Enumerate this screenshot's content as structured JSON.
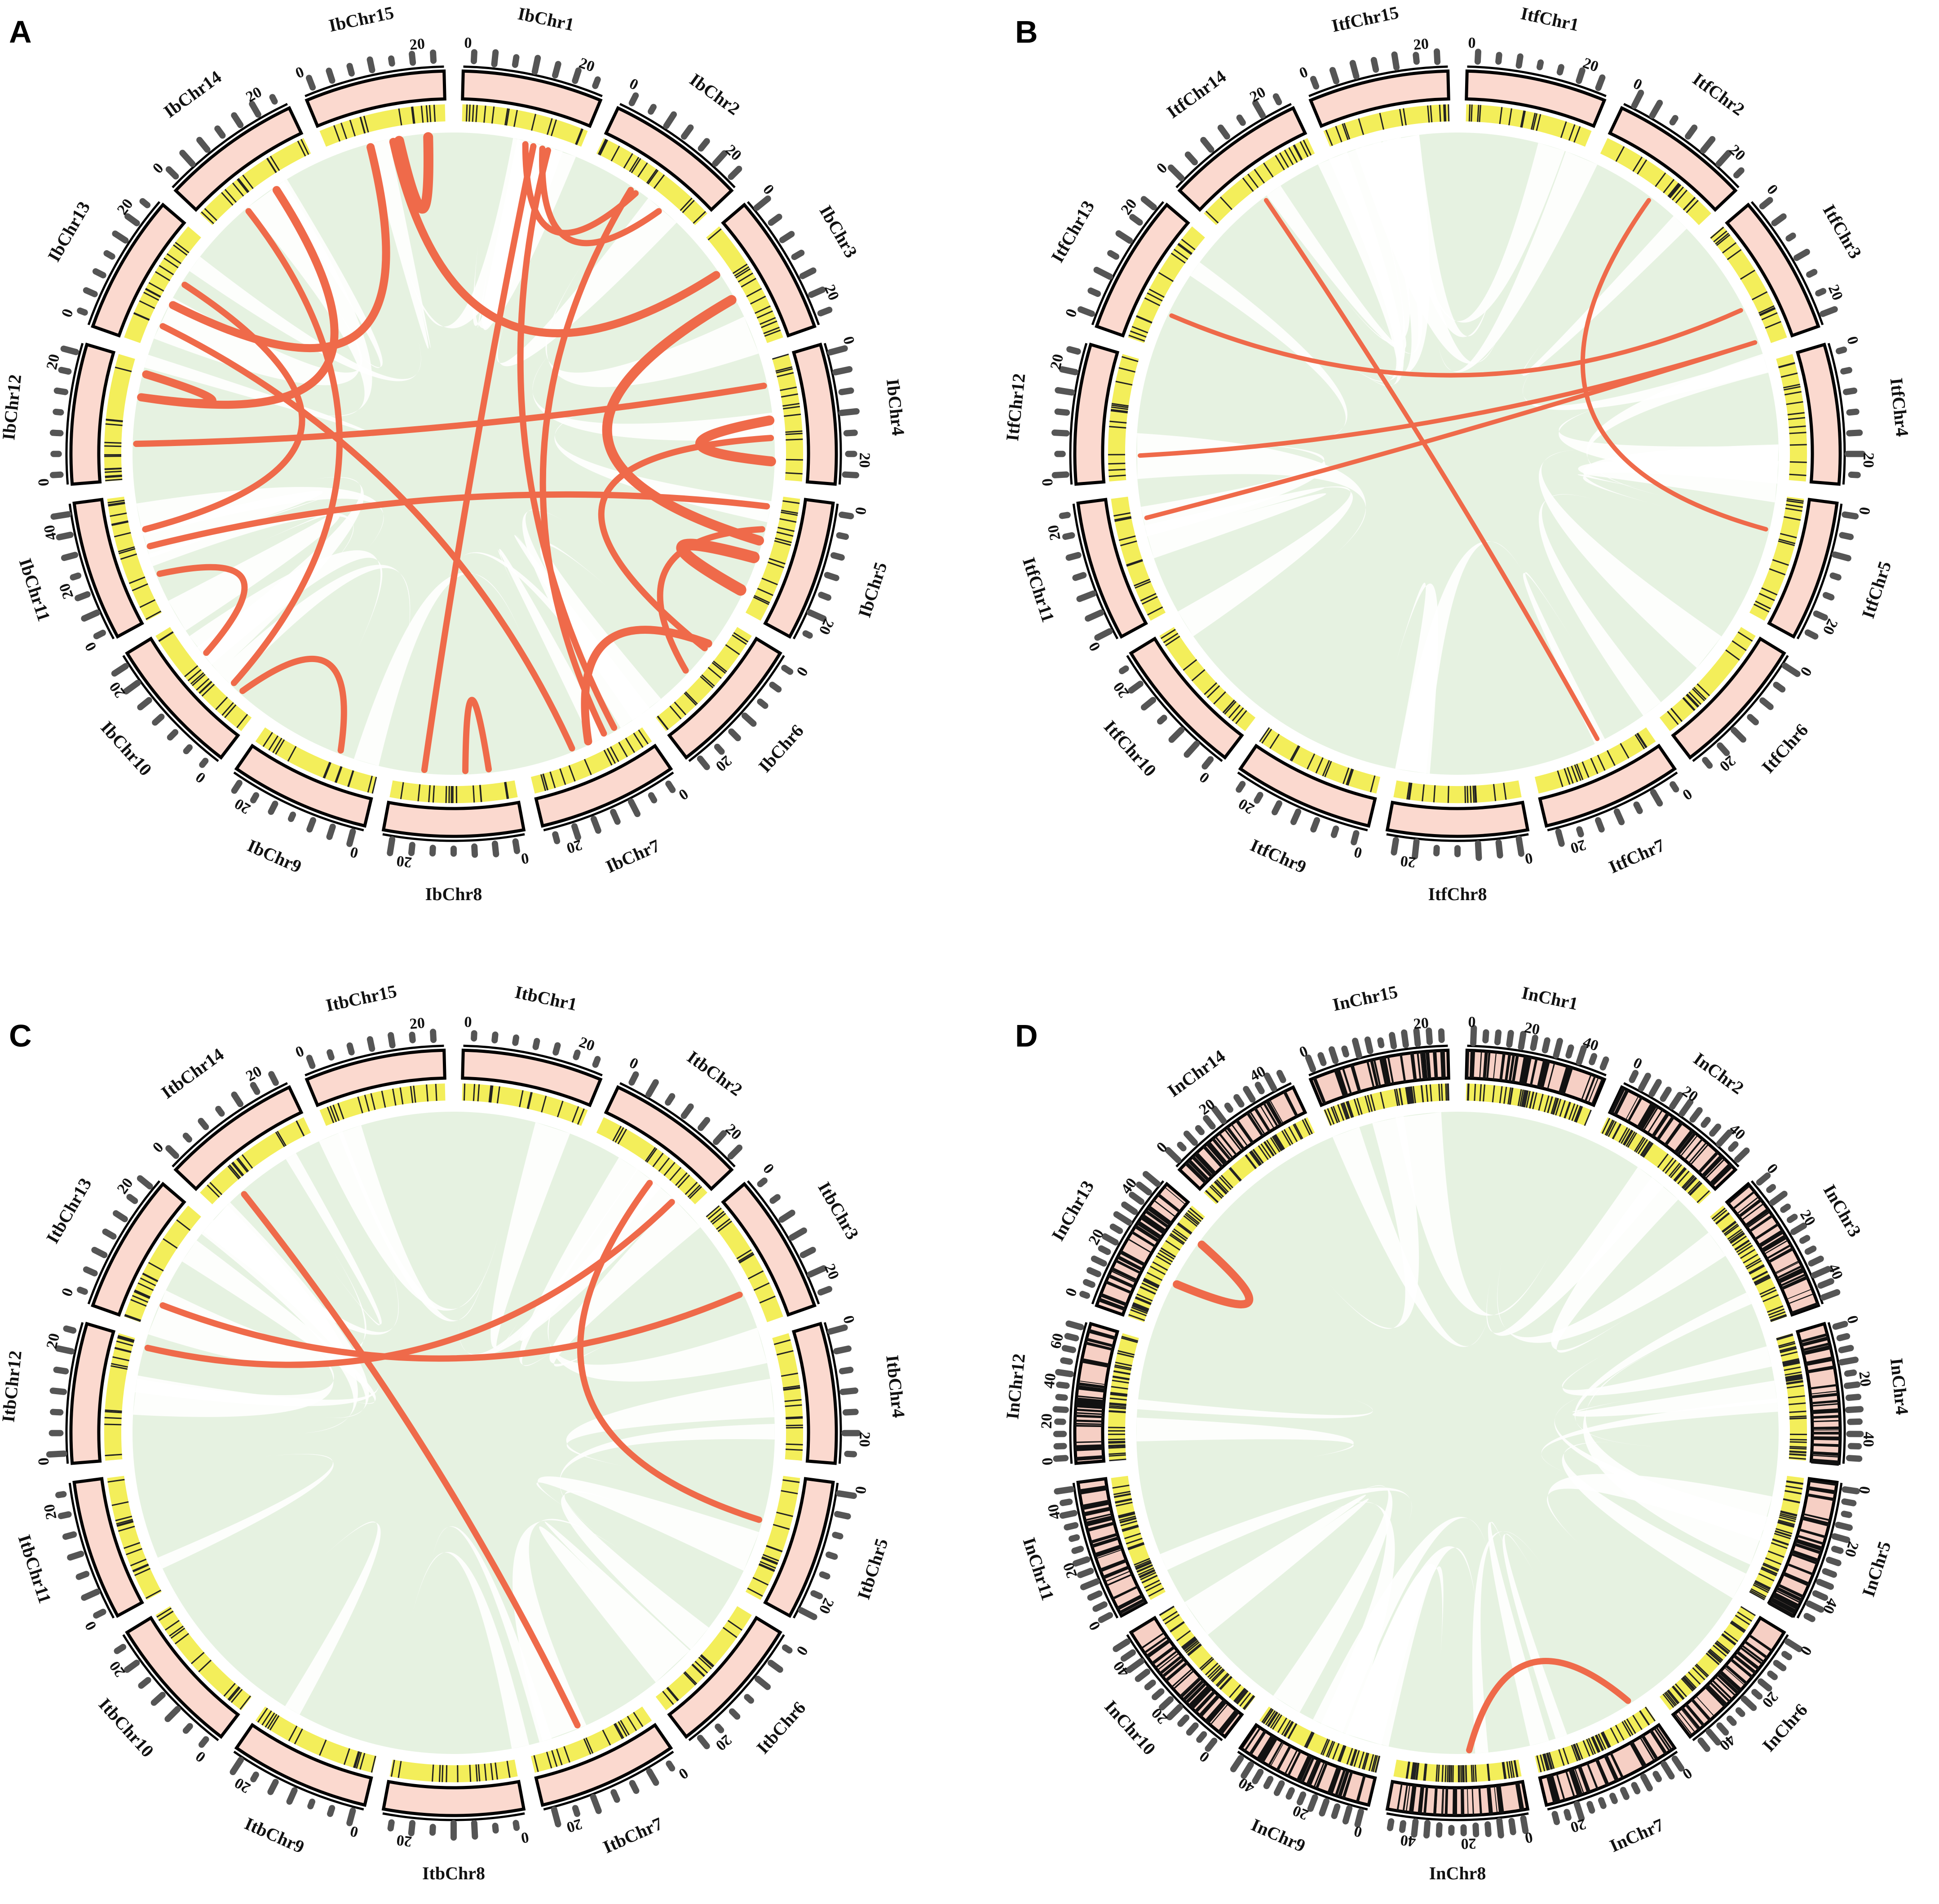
{
  "figure": {
    "panels": [
      {
        "letter": "A",
        "prefix": "IbChr",
        "chromosomes": [
          {
            "name": "IbChr1",
            "ticks": [
              "0",
              "20"
            ]
          },
          {
            "name": "IbChr2",
            "ticks": [
              "0",
              "20"
            ]
          },
          {
            "name": "IbChr3",
            "ticks": [
              "0",
              "20"
            ]
          },
          {
            "name": "IbChr4",
            "ticks": [
              "0",
              "20"
            ]
          },
          {
            "name": "IbChr5",
            "ticks": [
              "0",
              "20"
            ]
          },
          {
            "name": "IbChr6",
            "ticks": [
              "0",
              "20"
            ]
          },
          {
            "name": "IbChr7",
            "ticks": [
              "0",
              "20"
            ]
          },
          {
            "name": "IbChr8",
            "ticks": [
              "0",
              "20"
            ]
          },
          {
            "name": "IbChr9",
            "ticks": [
              "0",
              "20"
            ]
          },
          {
            "name": "IbChr10",
            "ticks": [
              "0",
              "20"
            ]
          },
          {
            "name": "IbChr11",
            "ticks": [
              "0",
              "20",
              "40"
            ]
          },
          {
            "name": "IbChr12",
            "ticks": [
              "0",
              "20"
            ]
          },
          {
            "name": "IbChr13",
            "ticks": [
              "0",
              "20"
            ]
          },
          {
            "name": "IbChr14",
            "ticks": [
              "0",
              "20"
            ]
          },
          {
            "name": "IbChr15",
            "ticks": [
              "0",
              "20"
            ]
          }
        ],
        "links": [
          {
            "from": [
              "IbChr15",
              0.35
            ],
            "to": [
              "IbChr13",
              0.4
            ],
            "weight": 3
          },
          {
            "from": [
              "IbChr15",
              0.55
            ],
            "to": [
              "IbChr3",
              0.3
            ],
            "weight": 3
          },
          {
            "from": [
              "IbChr15",
              0.85
            ],
            "to": [
              "IbChr15",
              0.6
            ],
            "weight": 4
          },
          {
            "from": [
              "IbChr14",
              0.3
            ],
            "to": [
              "IbChr10",
              0.3
            ],
            "weight": 2
          },
          {
            "from": [
              "IbChr14",
              0.6
            ],
            "to": [
              "IbChr12",
              0.7
            ],
            "weight": 3
          },
          {
            "from": [
              "IbChr13",
              0.2
            ],
            "to": [
              "IbChr7",
              0.6
            ],
            "weight": 2
          },
          {
            "from": [
              "IbChr1",
              0.55
            ],
            "to": [
              "IbChr2",
              0.45
            ],
            "weight": 2
          },
          {
            "from": [
              "IbChr1",
              0.7
            ],
            "to": [
              "IbChr2",
              0.7
            ],
            "weight": 2
          },
          {
            "from": [
              "IbChr1",
              0.62
            ],
            "to": [
              "IbChr8",
              0.75
            ],
            "weight": 2
          },
          {
            "from": [
              "IbChr2",
              0.4
            ],
            "to": [
              "IbChr7",
              0.3
            ],
            "weight": 2
          },
          {
            "from": [
              "IbChr3",
              0.55
            ],
            "to": [
              "IbChr5",
              0.4
            ],
            "weight": 4
          },
          {
            "from": [
              "IbChr4",
              0.2
            ],
            "to": [
              "IbChr12",
              0.3
            ],
            "weight": 2
          },
          {
            "from": [
              "IbChr4",
              0.5
            ],
            "to": [
              "IbChr4",
              0.85
            ],
            "weight": 4
          },
          {
            "from": [
              "IbChr4",
              0.65
            ],
            "to": [
              "IbChr6",
              0.3
            ],
            "weight": 2
          },
          {
            "from": [
              "IbChr5",
              0.1
            ],
            "to": [
              "IbChr11",
              0.55
            ],
            "weight": 2
          },
          {
            "from": [
              "IbChr5",
              0.55
            ],
            "to": [
              "IbChr5",
              0.85
            ],
            "weight": 5
          },
          {
            "from": [
              "IbChr5",
              0.3
            ],
            "to": [
              "IbChr6",
              0.55
            ],
            "weight": 2
          },
          {
            "from": [
              "IbChr6",
              0.25
            ],
            "to": [
              "IbChr7",
              0.45
            ],
            "weight": 3
          },
          {
            "from": [
              "IbChr7",
              0.2
            ],
            "to": [
              "IbChr1",
              0.75
            ],
            "weight": 2
          },
          {
            "from": [
              "IbChr8",
              0.4
            ],
            "to": [
              "IbChr8",
              0.2
            ],
            "weight": 2
          },
          {
            "from": [
              "IbChr9",
              0.35
            ],
            "to": [
              "IbChr10",
              0.2
            ],
            "weight": 2
          },
          {
            "from": [
              "IbChr10",
              0.65
            ],
            "to": [
              "IbChr11",
              0.3
            ],
            "weight": 2
          },
          {
            "from": [
              "IbChr11",
              0.7
            ],
            "to": [
              "IbChr13",
              0.6
            ],
            "weight": 2
          },
          {
            "from": [
              "IbChr12",
              0.7
            ],
            "to": [
              "IbChr12",
              0.9
            ],
            "weight": 3
          }
        ]
      },
      {
        "letter": "B",
        "prefix": "ItfChr",
        "chromosomes": [
          {
            "name": "ItfChr1",
            "ticks": [
              "0",
              "20"
            ]
          },
          {
            "name": "ItfChr2",
            "ticks": [
              "0",
              "20"
            ]
          },
          {
            "name": "ItfChr3",
            "ticks": [
              "0",
              "20"
            ]
          },
          {
            "name": "ItfChr4",
            "ticks": [
              "0",
              "20"
            ]
          },
          {
            "name": "ItfChr5",
            "ticks": [
              "0",
              "20"
            ]
          },
          {
            "name": "ItfChr6",
            "ticks": [
              "0",
              "20"
            ]
          },
          {
            "name": "ItfChr7",
            "ticks": [
              "0",
              "20"
            ]
          },
          {
            "name": "ItfChr8",
            "ticks": [
              "0",
              "20"
            ]
          },
          {
            "name": "ItfChr9",
            "ticks": [
              "0",
              "20"
            ]
          },
          {
            "name": "ItfChr10",
            "ticks": [
              "0",
              "20"
            ]
          },
          {
            "name": "ItfChr11",
            "ticks": [
              "0",
              "20"
            ]
          },
          {
            "name": "ItfChr12",
            "ticks": [
              "0",
              "20"
            ]
          },
          {
            "name": "ItfChr13",
            "ticks": [
              "0",
              "20"
            ]
          },
          {
            "name": "ItfChr14",
            "ticks": [
              "0",
              "20"
            ]
          },
          {
            "name": "ItfChr15",
            "ticks": [
              "0",
              "20"
            ]
          }
        ],
        "links": [
          {
            "from": [
              "ItfChr14",
              0.45
            ],
            "to": [
              "ItfChr7",
              0.4
            ],
            "weight": 1
          },
          {
            "from": [
              "ItfChr13",
              0.3
            ],
            "to": [
              "ItfChr3",
              0.65
            ],
            "weight": 1
          },
          {
            "from": [
              "ItfChr12",
              0.2
            ],
            "to": [
              "ItfChr3",
              0.95
            ],
            "weight": 1
          },
          {
            "from": [
              "ItfChr11",
              0.8
            ],
            "to": [
              "ItfChr3",
              0.95
            ],
            "weight": 1
          },
          {
            "from": [
              "ItfChr2",
              0.55
            ],
            "to": [
              "ItfChr5",
              0.3
            ],
            "weight": 1
          }
        ]
      },
      {
        "letter": "C",
        "prefix": "ItbChr",
        "chromosomes": [
          {
            "name": "ItbChr1",
            "ticks": [
              "0",
              "20"
            ]
          },
          {
            "name": "ItbChr2",
            "ticks": [
              "0",
              "20"
            ]
          },
          {
            "name": "ItbChr3",
            "ticks": [
              "0",
              "20"
            ]
          },
          {
            "name": "ItbChr4",
            "ticks": [
              "0",
              "20"
            ]
          },
          {
            "name": "ItbChr5",
            "ticks": [
              "0",
              "20"
            ]
          },
          {
            "name": "ItbChr6",
            "ticks": [
              "0",
              "20"
            ]
          },
          {
            "name": "ItbChr7",
            "ticks": [
              "0",
              "20"
            ]
          },
          {
            "name": "ItbChr8",
            "ticks": [
              "0",
              "20"
            ]
          },
          {
            "name": "ItbChr9",
            "ticks": [
              "0",
              "20"
            ]
          },
          {
            "name": "ItbChr10",
            "ticks": [
              "0",
              "20"
            ]
          },
          {
            "name": "ItbChr11",
            "ticks": [
              "0",
              "20"
            ]
          },
          {
            "name": "ItbChr12",
            "ticks": [
              "0",
              "20"
            ]
          },
          {
            "name": "ItbChr13",
            "ticks": [
              "0",
              "20"
            ]
          },
          {
            "name": "ItbChr14",
            "ticks": [
              "0",
              "20"
            ]
          },
          {
            "name": "ItbChr15",
            "ticks": [
              "0",
              "20"
            ]
          }
        ],
        "links": [
          {
            "from": [
              "ItbChr14",
              0.25
            ],
            "to": [
              "ItbChr7",
              0.55
            ],
            "weight": 2
          },
          {
            "from": [
              "ItbChr13",
              0.2
            ],
            "to": [
              "ItbChr3",
              0.7
            ],
            "weight": 2
          },
          {
            "from": [
              "ItbChr12",
              0.95
            ],
            "to": [
              "ItbChr2",
              0.85
            ],
            "weight": 2
          },
          {
            "from": [
              "ItbChr2",
              0.6
            ],
            "to": [
              "ItbChr5",
              0.4
            ],
            "weight": 2
          }
        ]
      },
      {
        "letter": "D",
        "prefix": "InChr",
        "dense": true,
        "chromosomes": [
          {
            "name": "InChr1",
            "ticks": [
              "0",
              "20",
              "40"
            ]
          },
          {
            "name": "InChr2",
            "ticks": [
              "0",
              "20",
              "40"
            ]
          },
          {
            "name": "InChr3",
            "ticks": [
              "0",
              "20",
              "40"
            ]
          },
          {
            "name": "InChr4",
            "ticks": [
              "0",
              "20",
              "40"
            ]
          },
          {
            "name": "InChr5",
            "ticks": [
              "0",
              "20",
              "40"
            ]
          },
          {
            "name": "InChr6",
            "ticks": [
              "0",
              "20",
              "40"
            ]
          },
          {
            "name": "InChr7",
            "ticks": [
              "0",
              "20"
            ]
          },
          {
            "name": "InChr8",
            "ticks": [
              "0",
              "20",
              "40"
            ]
          },
          {
            "name": "InChr9",
            "ticks": [
              "0",
              "20",
              "40"
            ]
          },
          {
            "name": "InChr10",
            "ticks": [
              "0",
              "20",
              "40"
            ]
          },
          {
            "name": "InChr11",
            "ticks": [
              "0",
              "20",
              "40"
            ]
          },
          {
            "name": "InChr12",
            "ticks": [
              "0",
              "20",
              "40",
              "60"
            ]
          },
          {
            "name": "InChr13",
            "ticks": [
              "0",
              "20",
              "40"
            ]
          },
          {
            "name": "InChr14",
            "ticks": [
              "0",
              "20",
              "40"
            ]
          },
          {
            "name": "InChr15",
            "ticks": [
              "0",
              "20"
            ]
          }
        ],
        "links": [
          {
            "from": [
              "InChr13",
              0.4
            ],
            "to": [
              "InChr13",
              0.8
            ],
            "weight": 3
          },
          {
            "from": [
              "InChr8",
              0.4
            ],
            "to": [
              "InChr7",
              0.1
            ],
            "weight": 2
          }
        ]
      }
    ]
  },
  "colors": {
    "ideogram_fill": "#fbd9cf",
    "ideogram_dense": "#111111",
    "outline": "#000000",
    "density_band": "#f3ee5a",
    "density_mark": "#222222",
    "synteny_background": "#e6f2e1",
    "highlight_link": "#ef6a4a",
    "histogram_dot": "#555555"
  }
}
